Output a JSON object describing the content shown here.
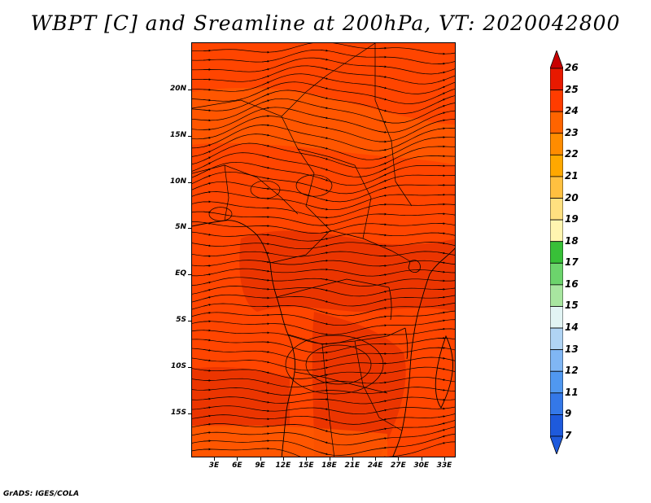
{
  "title": "WBPT [C] and Sreamline at 200hPa, VT: 2020042800",
  "credit": "GrADS: IGES/COLA",
  "map": {
    "variable": "WBPT [C]",
    "level": "200hPa",
    "valid_time": "2020042800",
    "lon_ticks": [
      "3E",
      "6E",
      "9E",
      "12E",
      "15E",
      "18E",
      "21E",
      "24E",
      "27E",
      "30E",
      "33E"
    ],
    "lat_ticks": [
      "20N",
      "15N",
      "10N",
      "5N",
      "EQ",
      "5S",
      "10S",
      "15S"
    ],
    "background_color": "#ff4500",
    "warm_region_color": "#e83200",
    "cool_region_color": "#ff5a00"
  },
  "colorbar": {
    "labels": [
      "26",
      "25",
      "24",
      "23",
      "22",
      "21",
      "20",
      "19",
      "18",
      "17",
      "16",
      "15",
      "14",
      "13",
      "12",
      "11",
      "9",
      "7"
    ],
    "colors": [
      "#c80000",
      "#e81900",
      "#ff3c00",
      "#ff6400",
      "#ff8c00",
      "#ffa800",
      "#ffc040",
      "#ffe080",
      "#fff5b0",
      "#38c038",
      "#6cd46c",
      "#a8e6a0",
      "#e2f4f4",
      "#b0d4f4",
      "#80b6f4",
      "#5098f0",
      "#3478e8",
      "#1e5adc",
      "#1e5adc"
    ]
  }
}
